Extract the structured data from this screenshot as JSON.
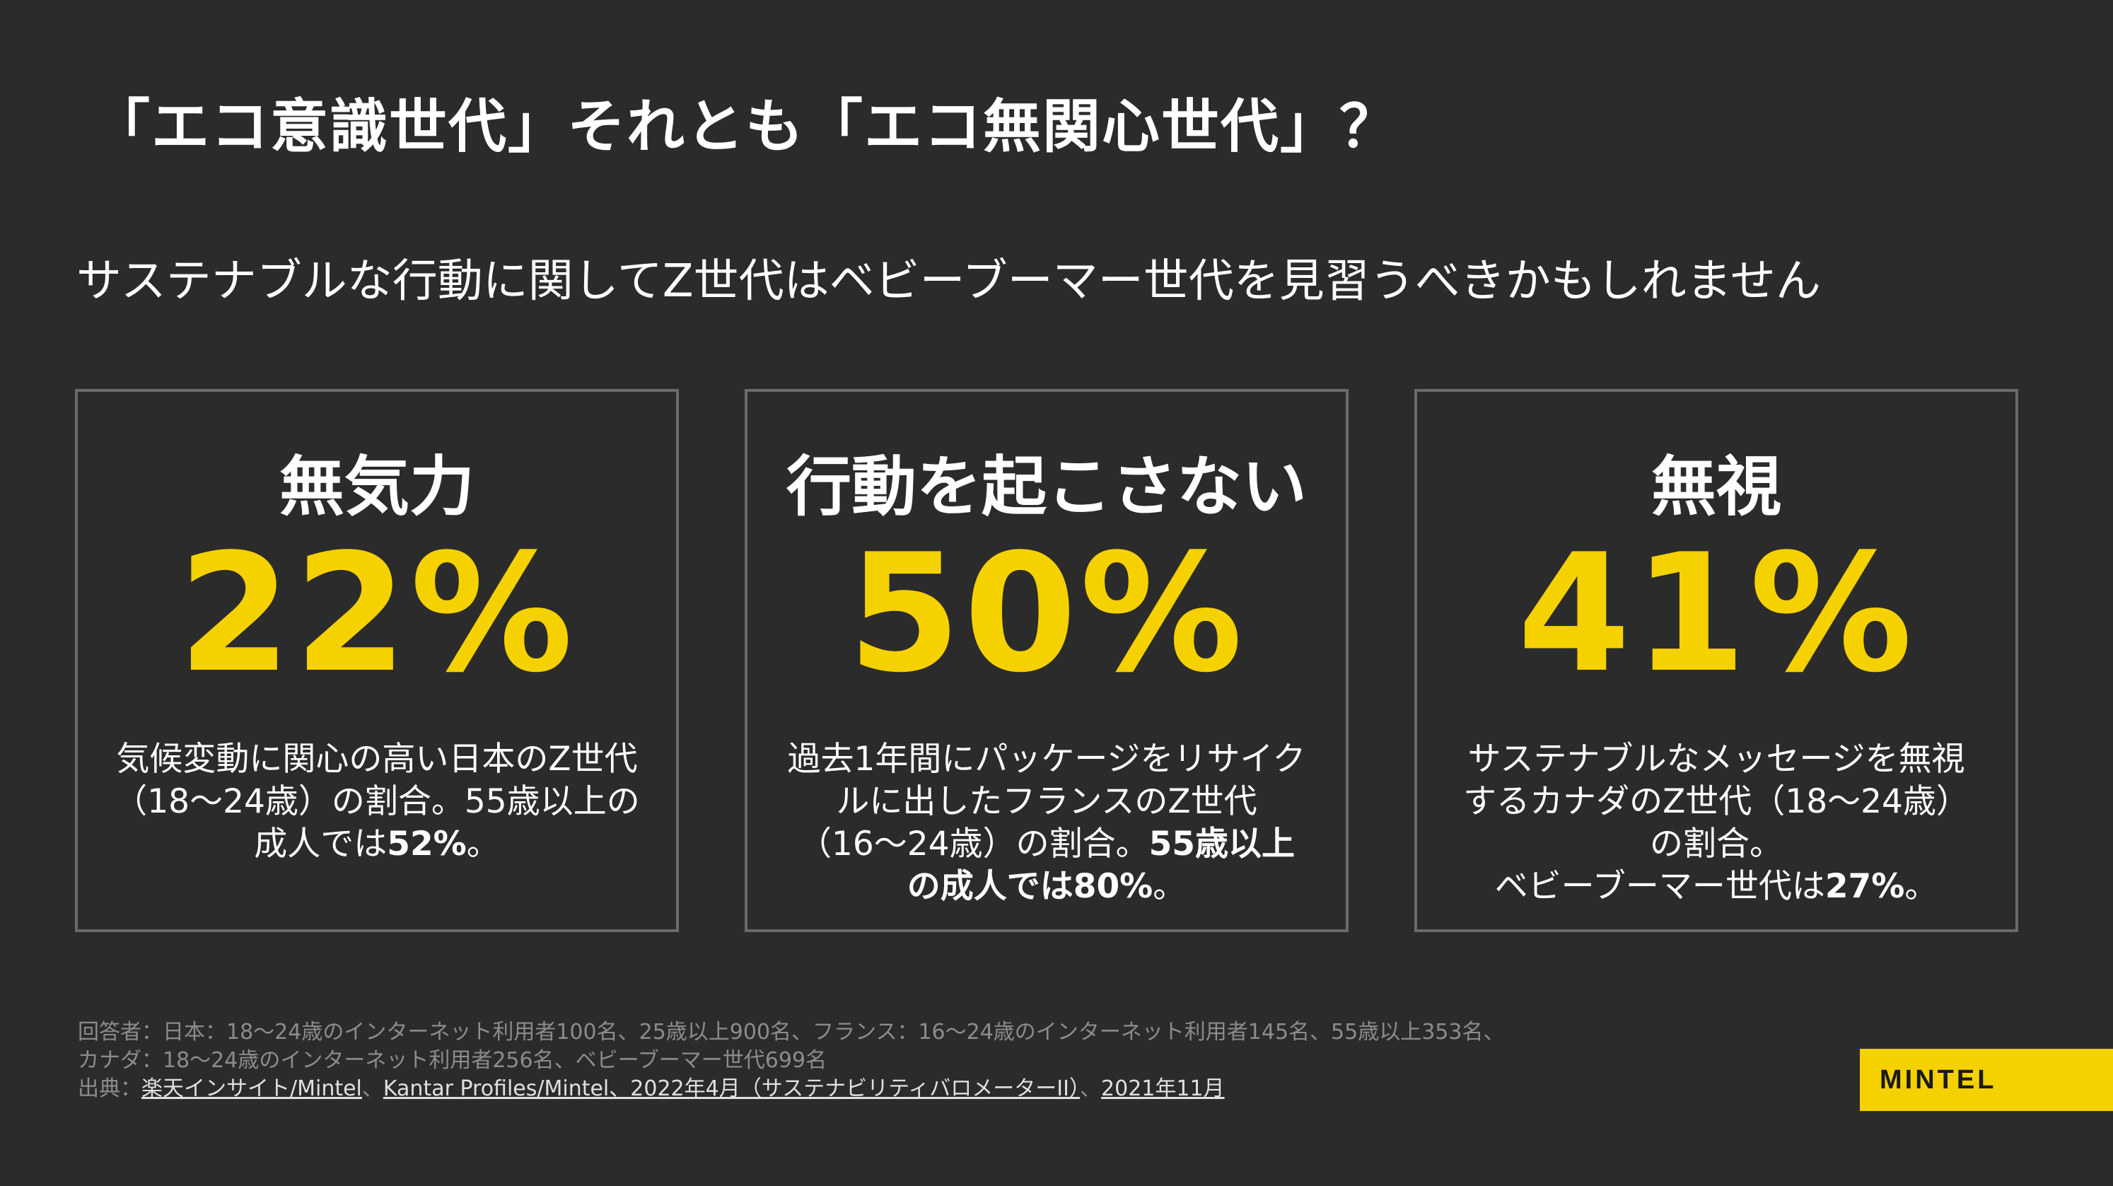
{
  "title": "「エコ意識世代」それとも「エコ無関心世代」？",
  "subtitle": "サステナブルな行動に関してZ世代はベビーブーマー世代を見習うべきかもしれません",
  "cards": [
    {
      "heading": "無気力",
      "stat": "22%",
      "desc_normal": "気候変動に関心の高い日本のZ世代（18〜24歳）の割合。55歳以上の成人では",
      "desc_bold": "52%",
      "desc_tail": "。"
    },
    {
      "heading": "行動を起こさない",
      "stat": "50%",
      "desc_normal": "過去1年間にパッケージをリサイクルに出したフランスのZ世代（16〜24歳）の割合。",
      "desc_bold": "55歳以上の成人では80%",
      "desc_tail": "。"
    },
    {
      "heading": "無視",
      "stat": "41%",
      "desc_normal": "サステナブルなメッセージを無視するカナダのZ世代（18〜24歳）の割合。",
      "desc_line2": "ベビーブーマー世代は",
      "desc_bold": "27%",
      "desc_tail": "。"
    }
  ],
  "footer": {
    "respondents_line1": "回答者：日本：18〜24歳のインターネット利用者100名、25歳以上900名、フランス：16〜24歳のインターネット利用者145名、55歳以上353名、",
    "respondents_line2": "カナダ：18〜24歳のインターネット利用者256名、ベビーブーマー世代699名",
    "source_label": "出典：",
    "source_link1": "楽天インサイト/Mintel",
    "sep1": "、",
    "source_link2": "Kantar Profiles/Mintel、2022年4月（サステナビリティバロメーターII）",
    "sep2": "、",
    "source_link3": "2021年11月"
  },
  "logo": "MINTEL",
  "colors": {
    "background": "#2b2b2b",
    "accent": "#f5d100",
    "border": "#6a6a6a"
  }
}
